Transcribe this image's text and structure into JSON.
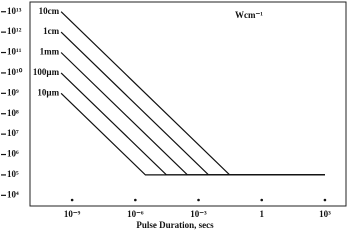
{
  "chart_data": {
    "type": "line",
    "x_label": "Pulse Duration, secs",
    "annotation": "Wcm⁻¹",
    "log_x": true,
    "log_y": true,
    "color": "#111111",
    "xlim": [
      1e-11,
      10000.0
    ],
    "ylim": [
      3000,
      30000000000000.0
    ],
    "xticks": [
      {
        "value": 1e-09,
        "label": "10⁻⁹"
      },
      {
        "value": 1e-06,
        "label": "10⁻⁶"
      },
      {
        "value": 0.001,
        "label": "10⁻³"
      },
      1,
      {
        "value": 1000,
        "label": "10³"
      }
    ],
    "yticks": [
      {
        "value": 10000.0,
        "label": "10⁴"
      },
      {
        "value": 100000.0,
        "label": "10⁵"
      },
      {
        "value": 1000000.0,
        "label": "10⁶"
      },
      {
        "value": 10000000.0,
        "label": "10⁷"
      },
      {
        "value": 100000000.0,
        "label": "10⁸"
      },
      {
        "value": 1000000000.0,
        "label": "10⁹"
      },
      {
        "value": 10000000000.0,
        "label": "10¹⁰"
      },
      {
        "value": 100000000000.0,
        "label": "10¹¹"
      },
      {
        "value": 1000000000000.0,
        "label": "10¹²"
      },
      {
        "value": 10000000000000.0,
        "label": "10¹³"
      }
    ],
    "series": [
      {
        "name": "10cm",
        "x": [
          3e-10,
          0.03,
          1000
        ],
        "values": [
          10000000000000.0,
          100000.0,
          100000.0
        ]
      },
      {
        "name": "1cm",
        "x": [
          3e-10,
          0.003,
          1000
        ],
        "values": [
          1000000000000.0,
          100000.0,
          100000.0
        ]
      },
      {
        "name": "1mm",
        "x": [
          3e-10,
          0.0003,
          1000
        ],
        "values": [
          100000000000.0,
          100000.0,
          100000.0
        ]
      },
      {
        "name": "100µm",
        "x": [
          3e-10,
          3e-05,
          1000
        ],
        "values": [
          10000000000.0,
          100000.0,
          100000.0
        ]
      },
      {
        "name": "10µm",
        "x": [
          3e-10,
          3e-06,
          1000
        ],
        "values": [
          1000000000.0,
          100000.0,
          100000.0
        ]
      }
    ]
  }
}
